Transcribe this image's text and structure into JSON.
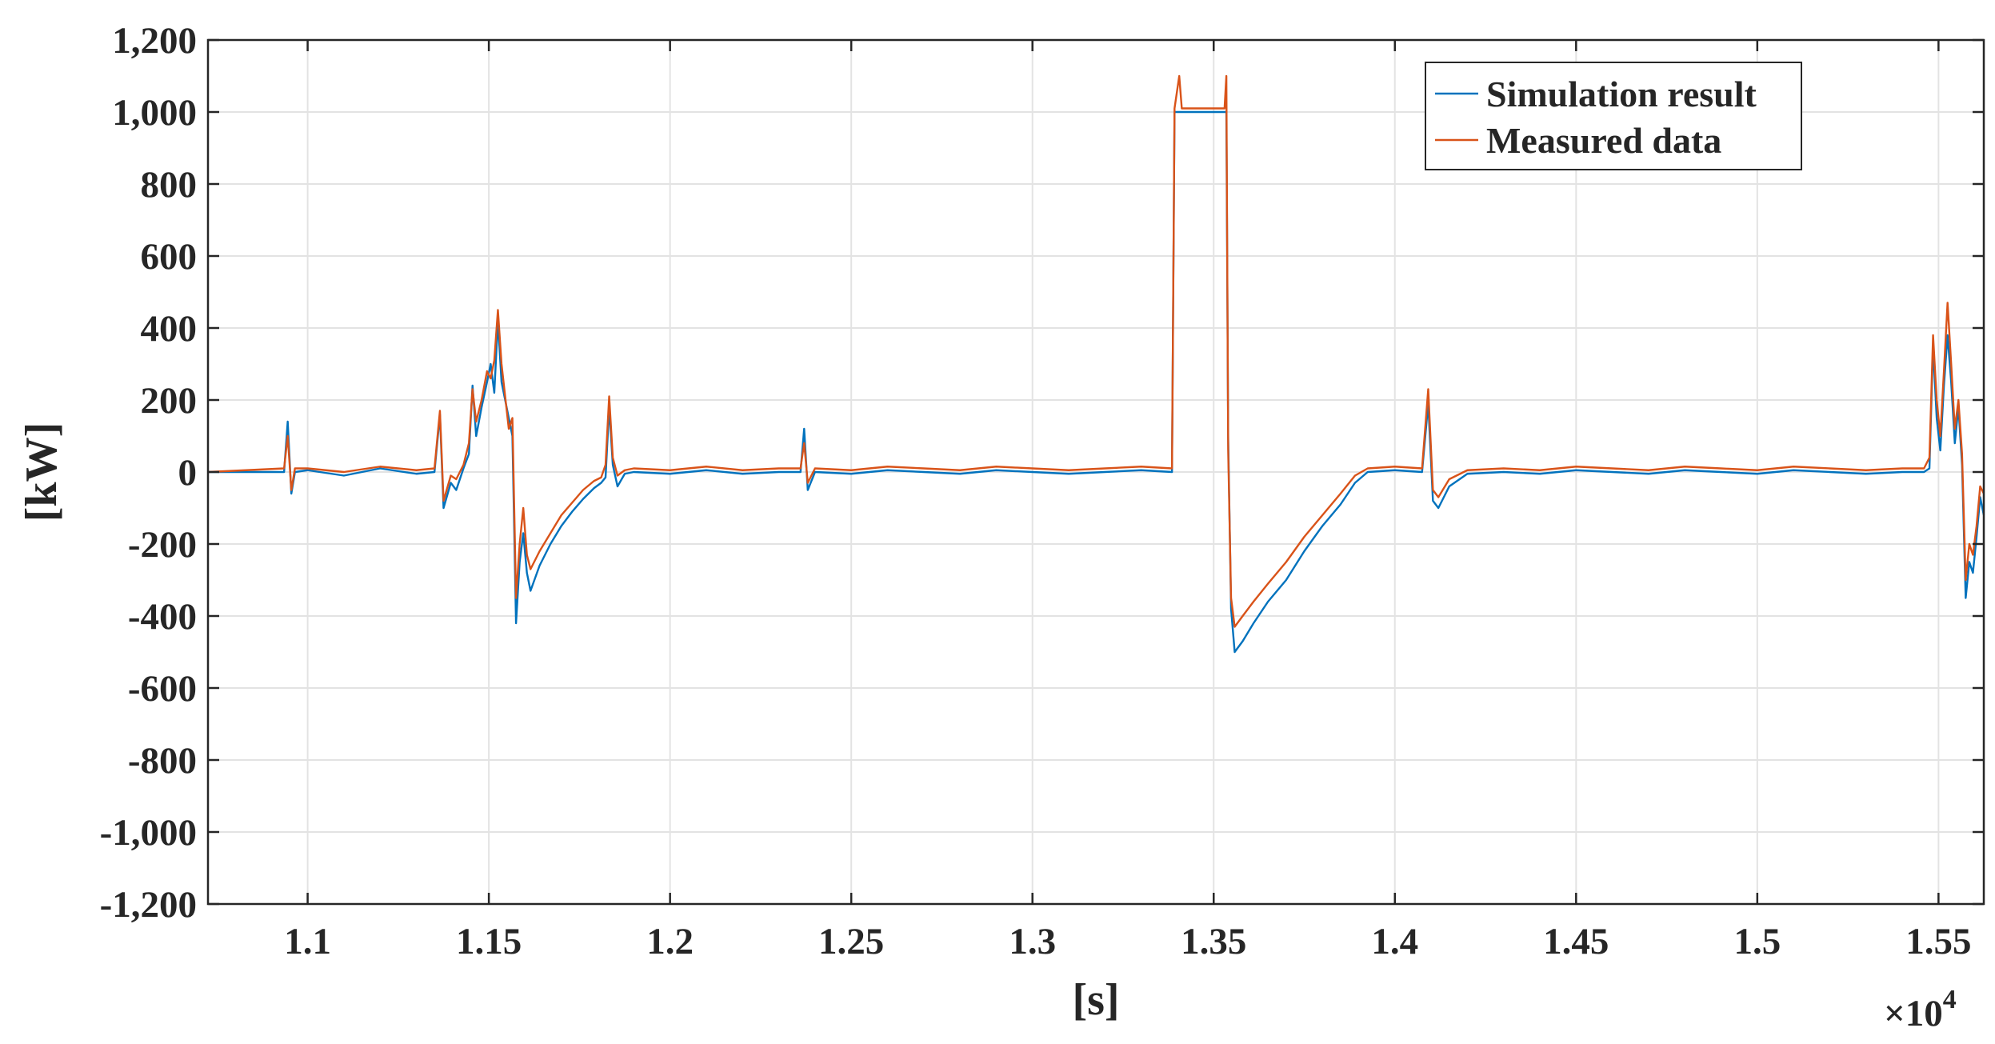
{
  "chart_data": {
    "type": "line",
    "xlabel": "[s]",
    "ylabel": "[kW]",
    "x_multiplier": {
      "base": "×10",
      "exponent": "4"
    },
    "xlim": [
      1.0725,
      1.5625
    ],
    "ylim": [
      -1200,
      1200
    ],
    "xticks": [
      1.1,
      1.15,
      1.2,
      1.25,
      1.3,
      1.35,
      1.4,
      1.45,
      1.5,
      1.55
    ],
    "xtick_labels": [
      "1.1",
      "1.15",
      "1.2",
      "1.25",
      "1.3",
      "1.35",
      "1.4",
      "1.45",
      "1.5",
      "1.55"
    ],
    "yticks": [
      -1200,
      -1000,
      -800,
      -600,
      -400,
      -200,
      0,
      200,
      400,
      600,
      800,
      1000,
      1200
    ],
    "ytick_labels": [
      "-1,200",
      "-1,000",
      "-800",
      "-600",
      "-400",
      "-200",
      "0",
      "200",
      "400",
      "600",
      "800",
      "1,000",
      "1,200"
    ],
    "grid": true,
    "legend_position": "top-right",
    "series": [
      {
        "name": "Simulation result",
        "color": "#0072BD",
        "points": [
          [
            1.0725,
            0
          ],
          [
            1.0935,
            0
          ],
          [
            1.0945,
            140
          ],
          [
            1.0955,
            -60
          ],
          [
            1.0965,
            0
          ],
          [
            1.1,
            5
          ],
          [
            1.11,
            -10
          ],
          [
            1.12,
            10
          ],
          [
            1.13,
            -5
          ],
          [
            1.135,
            0
          ],
          [
            1.1365,
            160
          ],
          [
            1.1375,
            -100
          ],
          [
            1.1395,
            -30
          ],
          [
            1.141,
            -50
          ],
          [
            1.143,
            10
          ],
          [
            1.1445,
            50
          ],
          [
            1.1455,
            240
          ],
          [
            1.1465,
            100
          ],
          [
            1.148,
            180
          ],
          [
            1.1495,
            250
          ],
          [
            1.1505,
            300
          ],
          [
            1.1515,
            220
          ],
          [
            1.1525,
            420
          ],
          [
            1.1535,
            250
          ],
          [
            1.1545,
            200
          ],
          [
            1.1555,
            150
          ],
          [
            1.1565,
            100
          ],
          [
            1.1575,
            -420
          ],
          [
            1.1585,
            -250
          ],
          [
            1.1595,
            -170
          ],
          [
            1.1605,
            -280
          ],
          [
            1.1615,
            -330
          ],
          [
            1.164,
            -260
          ],
          [
            1.167,
            -200
          ],
          [
            1.17,
            -150
          ],
          [
            1.173,
            -110
          ],
          [
            1.176,
            -75
          ],
          [
            1.179,
            -45
          ],
          [
            1.181,
            -30
          ],
          [
            1.1822,
            -15
          ],
          [
            1.1832,
            180
          ],
          [
            1.1842,
            20
          ],
          [
            1.1855,
            -40
          ],
          [
            1.1875,
            -5
          ],
          [
            1.19,
            0
          ],
          [
            1.2,
            -5
          ],
          [
            1.21,
            5
          ],
          [
            1.22,
            -5
          ],
          [
            1.23,
            0
          ],
          [
            1.236,
            0
          ],
          [
            1.237,
            120
          ],
          [
            1.238,
            -50
          ],
          [
            1.24,
            0
          ],
          [
            1.25,
            -5
          ],
          [
            1.26,
            5
          ],
          [
            1.27,
            0
          ],
          [
            1.28,
            -5
          ],
          [
            1.29,
            5
          ],
          [
            1.3,
            0
          ],
          [
            1.31,
            -5
          ],
          [
            1.32,
            0
          ],
          [
            1.33,
            5
          ],
          [
            1.3385,
            0
          ],
          [
            1.3392,
            1000
          ],
          [
            1.353,
            1000
          ],
          [
            1.3535,
            1000
          ],
          [
            1.354,
            100
          ],
          [
            1.3548,
            -380
          ],
          [
            1.3558,
            -500
          ],
          [
            1.358,
            -470
          ],
          [
            1.361,
            -420
          ],
          [
            1.365,
            -360
          ],
          [
            1.37,
            -300
          ],
          [
            1.375,
            -220
          ],
          [
            1.38,
            -150
          ],
          [
            1.385,
            -90
          ],
          [
            1.389,
            -30
          ],
          [
            1.3925,
            0
          ],
          [
            1.4,
            5
          ],
          [
            1.4075,
            0
          ],
          [
            1.4092,
            190
          ],
          [
            1.4105,
            -80
          ],
          [
            1.412,
            -100
          ],
          [
            1.415,
            -40
          ],
          [
            1.42,
            -5
          ],
          [
            1.43,
            0
          ],
          [
            1.44,
            -5
          ],
          [
            1.45,
            5
          ],
          [
            1.46,
            0
          ],
          [
            1.47,
            -5
          ],
          [
            1.48,
            5
          ],
          [
            1.49,
            0
          ],
          [
            1.5,
            -5
          ],
          [
            1.51,
            5
          ],
          [
            1.52,
            0
          ],
          [
            1.53,
            -5
          ],
          [
            1.54,
            0
          ],
          [
            1.546,
            0
          ],
          [
            1.5475,
            10
          ],
          [
            1.5485,
            350
          ],
          [
            1.5495,
            150
          ],
          [
            1.5505,
            60
          ],
          [
            1.5515,
            240
          ],
          [
            1.5525,
            380
          ],
          [
            1.5535,
            250
          ],
          [
            1.5545,
            80
          ],
          [
            1.5555,
            180
          ],
          [
            1.5565,
            20
          ],
          [
            1.5575,
            -350
          ],
          [
            1.5585,
            -250
          ],
          [
            1.5595,
            -280
          ],
          [
            1.5605,
            -180
          ],
          [
            1.5615,
            -70
          ],
          [
            1.5625,
            -120
          ]
        ]
      },
      {
        "name": "Measured data",
        "color": "#D95319",
        "points": [
          [
            1.0725,
            0
          ],
          [
            1.0935,
            10
          ],
          [
            1.0945,
            100
          ],
          [
            1.0955,
            -50
          ],
          [
            1.0965,
            10
          ],
          [
            1.1,
            10
          ],
          [
            1.11,
            0
          ],
          [
            1.12,
            15
          ],
          [
            1.13,
            5
          ],
          [
            1.135,
            10
          ],
          [
            1.1365,
            170
          ],
          [
            1.1375,
            -80
          ],
          [
            1.1395,
            -10
          ],
          [
            1.141,
            -20
          ],
          [
            1.143,
            20
          ],
          [
            1.1445,
            80
          ],
          [
            1.1455,
            230
          ],
          [
            1.1465,
            140
          ],
          [
            1.148,
            200
          ],
          [
            1.1495,
            280
          ],
          [
            1.1505,
            260
          ],
          [
            1.1515,
            310
          ],
          [
            1.1525,
            450
          ],
          [
            1.1535,
            300
          ],
          [
            1.1545,
            210
          ],
          [
            1.1555,
            120
          ],
          [
            1.1565,
            150
          ],
          [
            1.1575,
            -350
          ],
          [
            1.1585,
            -200
          ],
          [
            1.1595,
            -100
          ],
          [
            1.1605,
            -230
          ],
          [
            1.1615,
            -270
          ],
          [
            1.164,
            -220
          ],
          [
            1.167,
            -170
          ],
          [
            1.17,
            -120
          ],
          [
            1.173,
            -85
          ],
          [
            1.176,
            -50
          ],
          [
            1.179,
            -25
          ],
          [
            1.181,
            -15
          ],
          [
            1.1822,
            20
          ],
          [
            1.1832,
            210
          ],
          [
            1.1842,
            40
          ],
          [
            1.1855,
            -10
          ],
          [
            1.1875,
            5
          ],
          [
            1.19,
            10
          ],
          [
            1.2,
            5
          ],
          [
            1.21,
            15
          ],
          [
            1.22,
            5
          ],
          [
            1.23,
            10
          ],
          [
            1.236,
            10
          ],
          [
            1.237,
            80
          ],
          [
            1.238,
            -30
          ],
          [
            1.24,
            10
          ],
          [
            1.25,
            5
          ],
          [
            1.26,
            15
          ],
          [
            1.27,
            10
          ],
          [
            1.28,
            5
          ],
          [
            1.29,
            15
          ],
          [
            1.3,
            10
          ],
          [
            1.31,
            5
          ],
          [
            1.32,
            10
          ],
          [
            1.33,
            15
          ],
          [
            1.3385,
            10
          ],
          [
            1.3392,
            1010
          ],
          [
            1.3405,
            1100
          ],
          [
            1.3412,
            1010
          ],
          [
            1.353,
            1010
          ],
          [
            1.3535,
            1100
          ],
          [
            1.354,
            60
          ],
          [
            1.3548,
            -350
          ],
          [
            1.3558,
            -430
          ],
          [
            1.358,
            -400
          ],
          [
            1.361,
            -360
          ],
          [
            1.365,
            -310
          ],
          [
            1.37,
            -250
          ],
          [
            1.375,
            -180
          ],
          [
            1.38,
            -120
          ],
          [
            1.385,
            -60
          ],
          [
            1.389,
            -10
          ],
          [
            1.3925,
            10
          ],
          [
            1.4,
            15
          ],
          [
            1.4075,
            10
          ],
          [
            1.4092,
            230
          ],
          [
            1.4105,
            -50
          ],
          [
            1.412,
            -70
          ],
          [
            1.415,
            -20
          ],
          [
            1.42,
            5
          ],
          [
            1.43,
            10
          ],
          [
            1.44,
            5
          ],
          [
            1.45,
            15
          ],
          [
            1.46,
            10
          ],
          [
            1.47,
            5
          ],
          [
            1.48,
            15
          ],
          [
            1.49,
            10
          ],
          [
            1.5,
            5
          ],
          [
            1.51,
            15
          ],
          [
            1.52,
            10
          ],
          [
            1.53,
            5
          ],
          [
            1.54,
            10
          ],
          [
            1.546,
            10
          ],
          [
            1.5475,
            40
          ],
          [
            1.5485,
            380
          ],
          [
            1.5495,
            200
          ],
          [
            1.5505,
            100
          ],
          [
            1.5515,
            280
          ],
          [
            1.5525,
            470
          ],
          [
            1.5535,
            300
          ],
          [
            1.5545,
            120
          ],
          [
            1.5555,
            200
          ],
          [
            1.5565,
            50
          ],
          [
            1.5575,
            -300
          ],
          [
            1.5585,
            -200
          ],
          [
            1.5595,
            -230
          ],
          [
            1.5605,
            -150
          ],
          [
            1.5615,
            -40
          ],
          [
            1.5625,
            -60
          ]
        ]
      }
    ]
  }
}
